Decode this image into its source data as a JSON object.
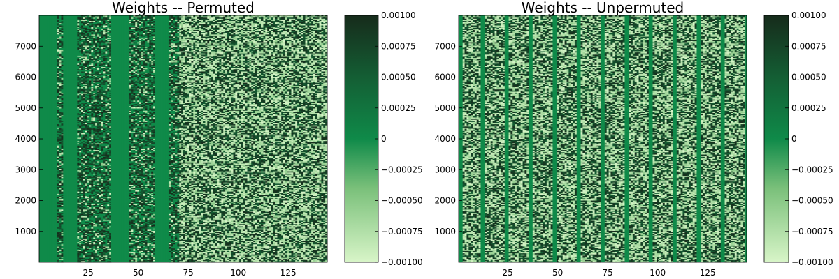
{
  "chart_data": [
    {
      "type": "heatmap",
      "title": "Weights -- Permuted",
      "xlabel": "",
      "ylabel": "",
      "xlim": [
        0.5,
        144.5
      ],
      "ylim": [
        0.5,
        8000.5
      ],
      "x_ticks": [
        25,
        50,
        75,
        100,
        125
      ],
      "y_ticks": [
        1000,
        2000,
        3000,
        4000,
        5000,
        6000,
        7000
      ],
      "x_tick_labels": [
        "25",
        "50",
        "75",
        "100",
        "125"
      ],
      "y_tick_labels": [
        "1000",
        "2000",
        "3000",
        "4000",
        "5000",
        "6000",
        "7000"
      ],
      "colorbar": {
        "colormap": "Greens",
        "clim": [
          -0.001,
          0.001
        ],
        "ticks": [
          -0.001,
          -0.00075,
          -0.0005,
          -0.00025,
          0,
          0.00025,
          0.0005,
          0.00075,
          0.001
        ],
        "tick_labels": [
          "−0.00100",
          "−0.00075",
          "−0.00050",
          "−0.00025",
          "0",
          "0.00025",
          "0.00050",
          "0.00075",
          "0.00100"
        ]
      },
      "zero_columns": [
        1,
        2,
        3,
        4,
        5,
        6,
        7,
        8,
        9,
        13,
        14,
        15,
        16,
        17,
        18,
        19,
        37,
        38,
        39,
        40,
        41,
        42,
        43,
        44,
        45,
        59,
        60,
        61,
        62,
        63,
        64,
        65
      ],
      "grid": false,
      "legend": "none"
    },
    {
      "type": "heatmap",
      "title": "Weights -- Unpermuted",
      "xlabel": "",
      "ylabel": "",
      "xlim": [
        0.5,
        144.5
      ],
      "ylim": [
        0.5,
        8000.5
      ],
      "x_ticks": [
        25,
        50,
        75,
        100,
        125
      ],
      "y_ticks": [
        1000,
        2000,
        3000,
        4000,
        5000,
        6000,
        7000
      ],
      "x_tick_labels": [
        "25",
        "50",
        "75",
        "100",
        "125"
      ],
      "y_tick_labels": [
        "1000",
        "2000",
        "3000",
        "4000",
        "5000",
        "6000",
        "7000"
      ],
      "colorbar": {
        "colormap": "Greens",
        "clim": [
          -0.001,
          0.001
        ],
        "ticks": [
          -0.001,
          -0.00075,
          -0.0005,
          -0.00025,
          0,
          0.00025,
          0.0005,
          0.00075,
          0.001
        ],
        "tick_labels": [
          "−0.00100",
          "−0.00075",
          "−0.00050",
          "−0.00025",
          "0",
          "0.00025",
          "0.00050",
          "0.00075",
          "0.00100"
        ]
      },
      "zero_columns": [
        1,
        2,
        12,
        13,
        24,
        25,
        36,
        37,
        48,
        49,
        60,
        61,
        72,
        73,
        84,
        85,
        96,
        97,
        108,
        109,
        120,
        121,
        132,
        133,
        144
      ],
      "grid": false,
      "legend": "none"
    }
  ]
}
